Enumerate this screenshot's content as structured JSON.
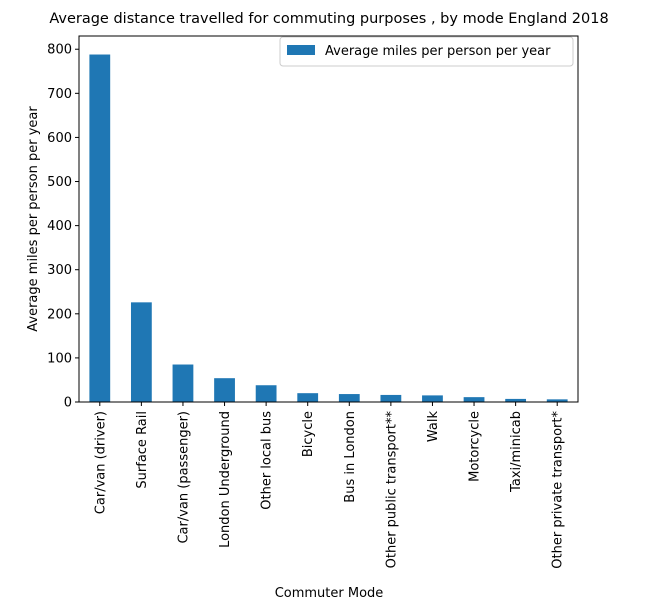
{
  "chart_data": {
    "type": "bar",
    "title": "Average distance travelled for commuting purposes , by mode England 2018",
    "xlabel": "Commuter Mode",
    "ylabel": "Average miles per person per year",
    "categories": [
      "Car/van (driver)",
      "Surface Rail",
      "Car/van (passenger)",
      "London Underground",
      "Other local bus",
      "Bicycle",
      "Bus in London",
      "Other public transport**",
      "Walk",
      "Motorcycle",
      "Taxi/minicab",
      "Other private transport*"
    ],
    "series": [
      {
        "name": "Average miles per person per year",
        "values": [
          788,
          226,
          85,
          54,
          38,
          20,
          18,
          16,
          15,
          11,
          7,
          6
        ],
        "color": "#1f77b4"
      }
    ],
    "ylim": [
      0,
      830
    ],
    "yticks": [
      0,
      100,
      200,
      300,
      400,
      500,
      600,
      700,
      800
    ],
    "grid": false,
    "legend_position": "top-right"
  }
}
